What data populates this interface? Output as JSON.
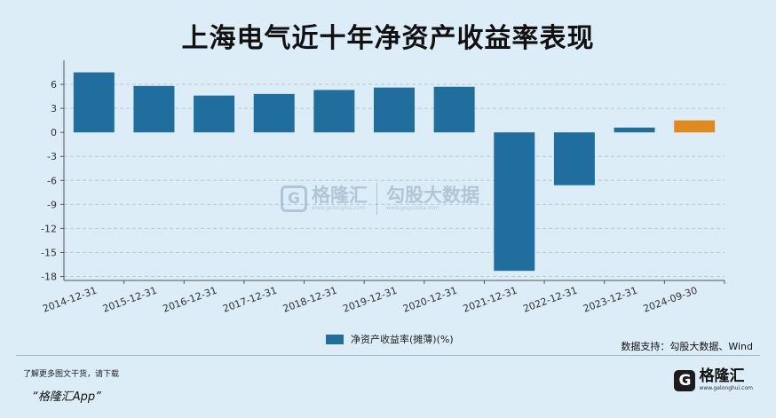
{
  "title": "上海电气近十年净资产收益率表现",
  "legend": {
    "label": "净资产收益率(摊薄)(%)"
  },
  "source": "数据支持：勾股大数据、Wind",
  "footer": {
    "line1": "了解更多图文干货，请下载",
    "line2": "“格隆汇App”",
    "logo_name": "格隆汇",
    "logo_url": "www.gelonghui.com"
  },
  "watermark": {
    "name1": "格隆汇",
    "url1": "www.gelonghui.com",
    "name2": "勾股大数据",
    "url2": "www.gogudata.com"
  },
  "colors": {
    "bar": "#1f6e9e",
    "highlight": "#e08a1e",
    "grid": "#b3c9d8",
    "background": "#dcedf8"
  },
  "chart_data": {
    "type": "bar",
    "categories": [
      "2014-12-31",
      "2015-12-31",
      "2016-12-31",
      "2017-12-31",
      "2018-12-31",
      "2019-12-31",
      "2020-12-31",
      "2021-12-31",
      "2022-12-31",
      "2023-12-31",
      "2024-09-30"
    ],
    "series": [
      {
        "name": "净资产收益率(摊薄)(%)",
        "values": [
          7.5,
          5.8,
          4.6,
          4.8,
          5.3,
          5.6,
          5.7,
          -17.3,
          -6.6,
          0.6,
          1.5
        ]
      }
    ],
    "highlight_index": 10,
    "yticks": [
      6,
      3,
      0,
      -3,
      -6,
      -9,
      -12,
      -15,
      -18
    ],
    "ylim": [
      -18.5,
      9
    ],
    "grid": "horizontal dashed",
    "legend_position": "bottom-center"
  }
}
